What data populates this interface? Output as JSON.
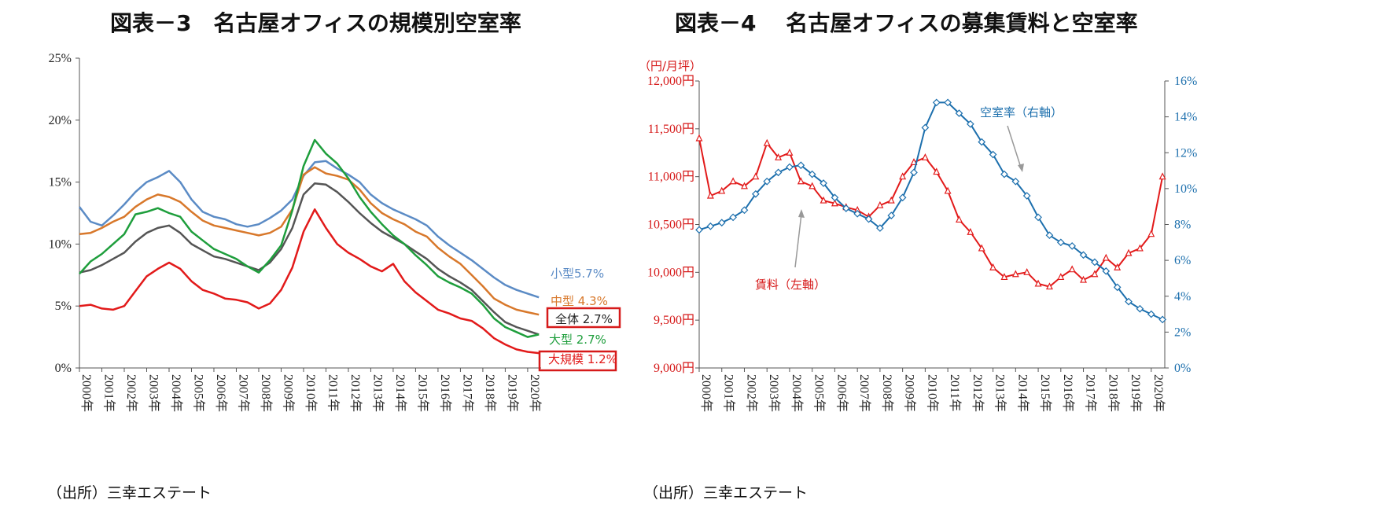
{
  "titles": {
    "left": "図表－3　名古屋オフィスの規模別空室率",
    "right": "図表－4　 名古屋オフィスの募集賃料と空室率"
  },
  "sources": {
    "left": "（出所）三幸エステート",
    "right": "（出所）三幸エステート"
  },
  "chart_data": [
    {
      "type": "line",
      "title": "図表－3　名古屋オフィスの規模別空室率",
      "ylim": [
        0,
        25
      ],
      "yticks": [
        "25%",
        "20%",
        "15%",
        "10%",
        "5%",
        "0%"
      ],
      "xticks": [
        "2000年",
        "2001年",
        "2002年",
        "2003年",
        "2004年",
        "2005年",
        "2006年",
        "2007年",
        "2008年",
        "2009年",
        "2010年",
        "2011年",
        "2012年",
        "2013年",
        "2014年",
        "2015年",
        "2016年",
        "2017年",
        "2018年",
        "2019年",
        "2020年"
      ],
      "x": [
        2000,
        2000.5,
        2001,
        2001.5,
        2002,
        2002.5,
        2003,
        2003.5,
        2004,
        2004.5,
        2005,
        2005.5,
        2006,
        2006.5,
        2007,
        2007.5,
        2008,
        2008.5,
        2009,
        2009.5,
        2010,
        2010.5,
        2011,
        2011.5,
        2012,
        2012.5,
        2013,
        2013.5,
        2014,
        2014.5,
        2015,
        2015.5,
        2016,
        2016.5,
        2017,
        2017.5,
        2018,
        2018.5,
        2019,
        2019.5,
        2020,
        2020.5
      ],
      "series": [
        {
          "name": "小型",
          "label": "小型5.7%",
          "color": "#5b8bc5",
          "values": [
            13.0,
            11.8,
            11.5,
            12.3,
            13.2,
            14.2,
            15.0,
            15.4,
            15.9,
            15.0,
            13.6,
            12.6,
            12.2,
            12.0,
            11.6,
            11.4,
            11.6,
            12.1,
            12.7,
            13.6,
            15.5,
            16.6,
            16.7,
            16.1,
            15.6,
            15.0,
            14.0,
            13.3,
            12.8,
            12.4,
            12.0,
            11.5,
            10.6,
            9.9,
            9.3,
            8.7,
            8.0,
            7.3,
            6.7,
            6.3,
            6.0,
            5.7
          ]
        },
        {
          "name": "中型",
          "label": "中型 4.3%",
          "color": "#d8782b",
          "values": [
            10.8,
            10.9,
            11.3,
            11.8,
            12.2,
            13.0,
            13.6,
            14.0,
            13.8,
            13.4,
            12.6,
            11.9,
            11.5,
            11.3,
            11.1,
            10.9,
            10.7,
            10.9,
            11.4,
            12.8,
            15.6,
            16.2,
            15.7,
            15.5,
            15.2,
            14.4,
            13.3,
            12.5,
            12.0,
            11.6,
            11.0,
            10.6,
            9.7,
            9.0,
            8.4,
            7.5,
            6.6,
            5.6,
            5.1,
            4.7,
            4.5,
            4.3
          ]
        },
        {
          "name": "全体",
          "label": "全体 2.7%",
          "color": "#555555",
          "values": [
            7.7,
            7.9,
            8.3,
            8.8,
            9.3,
            10.2,
            10.9,
            11.3,
            11.5,
            10.9,
            10.0,
            9.5,
            9.0,
            8.8,
            8.5,
            8.2,
            7.9,
            8.5,
            9.6,
            11.3,
            14.0,
            14.9,
            14.8,
            14.2,
            13.4,
            12.5,
            11.7,
            11.0,
            10.5,
            10.0,
            9.4,
            8.8,
            8.0,
            7.4,
            6.9,
            6.3,
            5.4,
            4.5,
            3.7,
            3.3,
            3.0,
            2.7
          ]
        },
        {
          "name": "大型",
          "label": "大型 2.7%",
          "color": "#1e9e3c",
          "values": [
            7.6,
            8.6,
            9.2,
            10.0,
            10.8,
            12.4,
            12.6,
            12.9,
            12.5,
            12.2,
            11.0,
            10.3,
            9.6,
            9.2,
            8.8,
            8.2,
            7.7,
            8.7,
            9.9,
            12.7,
            16.3,
            18.4,
            17.3,
            16.5,
            15.3,
            13.8,
            12.6,
            11.6,
            10.7,
            10.0,
            9.1,
            8.3,
            7.4,
            6.9,
            6.5,
            6.0,
            5.1,
            4.0,
            3.3,
            2.9,
            2.5,
            2.7
          ]
        },
        {
          "name": "大規模",
          "label": "大規模 1.2%",
          "color": "#e21a1a",
          "values": [
            5.0,
            5.1,
            4.8,
            4.7,
            5.0,
            6.2,
            7.4,
            8.0,
            8.5,
            8.0,
            7.0,
            6.3,
            6.0,
            5.6,
            5.5,
            5.3,
            4.8,
            5.2,
            6.3,
            8.1,
            11.0,
            12.8,
            11.3,
            10.0,
            9.3,
            8.8,
            8.2,
            7.8,
            8.4,
            7.0,
            6.1,
            5.4,
            4.7,
            4.4,
            4.0,
            3.8,
            3.2,
            2.4,
            1.9,
            1.5,
            1.3,
            1.2
          ]
        }
      ],
      "boxed_labels": [
        "全体",
        "大規模"
      ]
    },
    {
      "type": "line",
      "title": "図表－4　 名古屋オフィスの募集賃料と空室率",
      "y_unit": "（円/月坪）",
      "ylim_left": [
        9000,
        12000
      ],
      "ylim_right": [
        0,
        16
      ],
      "yticks_left": [
        "12,000円",
        "11,500円",
        "11,000円",
        "10,500円",
        "10,000円",
        "9,500円",
        "9,000円"
      ],
      "yticks_right": [
        "16%",
        "14%",
        "12%",
        "10%",
        "8%",
        "6%",
        "4%",
        "2%",
        "0%"
      ],
      "xticks": [
        "2000年",
        "2001年",
        "2002年",
        "2003年",
        "2004年",
        "2005年",
        "2006年",
        "2007年",
        "2008年",
        "2009年",
        "2010年",
        "2011年",
        "2012年",
        "2013年",
        "2014年",
        "2015年",
        "2016年",
        "2017年",
        "2018年",
        "2019年",
        "2020年"
      ],
      "x": [
        2000,
        2000.5,
        2001,
        2001.5,
        2002,
        2002.5,
        2003,
        2003.5,
        2004,
        2004.5,
        2005,
        2005.5,
        2006,
        2006.5,
        2007,
        2007.5,
        2008,
        2008.5,
        2009,
        2009.5,
        2010,
        2010.5,
        2011,
        2011.5,
        2012,
        2012.5,
        2013,
        2013.5,
        2014,
        2014.5,
        2015,
        2015.5,
        2016,
        2016.5,
        2017,
        2017.5,
        2018,
        2018.5,
        2019,
        2019.5,
        2020,
        2020.5
      ],
      "series": [
        {
          "name": "賃料",
          "label": "賃料（左軸）",
          "axis": "left",
          "color": "#e21a1a",
          "marker": "triangle",
          "values": [
            11400,
            10800,
            10850,
            10950,
            10900,
            11000,
            11350,
            11200,
            11250,
            10950,
            10900,
            10750,
            10720,
            10680,
            10650,
            10580,
            10700,
            10750,
            11000,
            11150,
            11200,
            11050,
            10850,
            10550,
            10420,
            10250,
            10050,
            9950,
            9980,
            10000,
            9880,
            9850,
            9950,
            10030,
            9920,
            9980,
            10150,
            10050,
            10200,
            10250,
            10400,
            11000
          ]
        },
        {
          "name": "空室率",
          "label": "空室率（右軸）",
          "axis": "right",
          "color": "#1c6fad",
          "marker": "diamond",
          "values": [
            7.7,
            7.9,
            8.1,
            8.4,
            8.8,
            9.7,
            10.4,
            10.9,
            11.2,
            11.3,
            10.8,
            10.3,
            9.5,
            8.9,
            8.6,
            8.3,
            7.8,
            8.5,
            9.5,
            10.9,
            13.4,
            14.8,
            14.8,
            14.2,
            13.6,
            12.6,
            11.9,
            10.8,
            10.4,
            9.6,
            8.4,
            7.4,
            7.0,
            6.8,
            6.3,
            5.9,
            5.4,
            4.5,
            3.7,
            3.3,
            3.0,
            2.7
          ]
        }
      ],
      "annotations": [
        "空室率（右軸）",
        "賃料（左軸）"
      ]
    }
  ]
}
